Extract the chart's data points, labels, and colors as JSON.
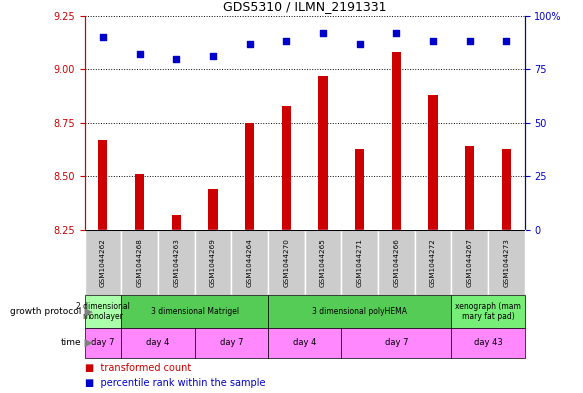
{
  "title": "GDS5310 / ILMN_2191331",
  "samples": [
    "GSM1044262",
    "GSM1044268",
    "GSM1044263",
    "GSM1044269",
    "GSM1044264",
    "GSM1044270",
    "GSM1044265",
    "GSM1044271",
    "GSM1044266",
    "GSM1044272",
    "GSM1044267",
    "GSM1044273"
  ],
  "bar_values": [
    8.67,
    8.51,
    8.32,
    8.44,
    8.75,
    8.83,
    8.97,
    8.63,
    9.08,
    8.88,
    8.64,
    8.63
  ],
  "dot_values": [
    90,
    82,
    80,
    81,
    87,
    88,
    92,
    87,
    92,
    88,
    88,
    88
  ],
  "ylim_left": [
    8.25,
    9.25
  ],
  "ylim_right": [
    0,
    100
  ],
  "yticks_left": [
    8.25,
    8.5,
    8.75,
    9.0,
    9.25
  ],
  "yticks_right": [
    0,
    25,
    50,
    75,
    100
  ],
  "bar_color": "#cc0000",
  "dot_color": "#0000cc",
  "growth_protocol_groups": [
    {
      "label": "2 dimensional\nmonolayer",
      "start": 0,
      "end": 1,
      "color": "#aaffaa"
    },
    {
      "label": "3 dimensional Matrigel",
      "start": 1,
      "end": 5,
      "color": "#66dd66"
    },
    {
      "label": "3 dimensional polyHEMA",
      "start": 5,
      "end": 10,
      "color": "#66dd66"
    },
    {
      "label": "xenograph (mam\nmary fat pad)",
      "start": 10,
      "end": 12,
      "color": "#88ee88"
    }
  ],
  "time_groups": [
    {
      "label": "day 7",
      "start": 0,
      "end": 1
    },
    {
      "label": "day 4",
      "start": 1,
      "end": 3
    },
    {
      "label": "day 7",
      "start": 3,
      "end": 5
    },
    {
      "label": "day 4",
      "start": 5,
      "end": 7
    },
    {
      "label": "day 7",
      "start": 7,
      "end": 10
    },
    {
      "label": "day 43",
      "start": 10,
      "end": 12
    }
  ],
  "time_color": "#ff88ff",
  "bar_width": 0.25,
  "sample_bg_color": "#cccccc",
  "left_label_color": "#cc0000",
  "right_label_color": "#0000cc",
  "gp_green_light": "#aaffaa",
  "gp_green_mid": "#55cc55",
  "gp_green_xeno": "#77ee77"
}
